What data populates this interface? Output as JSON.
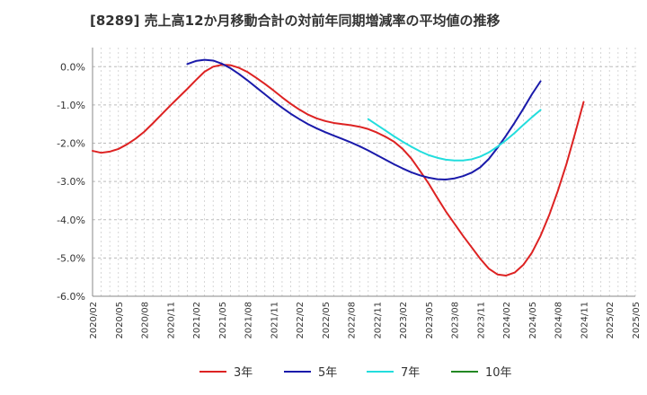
{
  "chart_data": {
    "type": "line",
    "title": "[8289]  売上高12か月移動合計の対前年同期増減率の平均値の推移",
    "xlabel": "",
    "ylabel": "",
    "ylim": [
      -6.0,
      0.5
    ],
    "yticks": [
      "0.0%",
      "-1.0%",
      "-2.0%",
      "-3.0%",
      "-4.0%",
      "-5.0%",
      "-6.0%"
    ],
    "ytick_values": [
      0,
      -1,
      -2,
      -3,
      -4,
      -5,
      -6
    ],
    "xticks": [
      "2020/02",
      "2020/05",
      "2020/08",
      "2020/11",
      "2021/02",
      "2021/05",
      "2021/08",
      "2021/11",
      "2022/02",
      "2022/05",
      "2022/08",
      "2022/11",
      "2023/02",
      "2023/05",
      "2023/08",
      "2023/11",
      "2024/02",
      "2024/05",
      "2024/08",
      "2024/11",
      "2025/02",
      "2025/05"
    ],
    "x_start": "2020/02",
    "x_end": "2025/05",
    "grid": true,
    "legend_position": "bottom",
    "series": [
      {
        "name": "3年",
        "color": "#dd2222",
        "points": [
          [
            "2020/02",
            -2.2
          ],
          [
            "2020/03",
            -2.25
          ],
          [
            "2020/04",
            -2.22
          ],
          [
            "2020/05",
            -2.15
          ],
          [
            "2020/06",
            -2.03
          ],
          [
            "2020/07",
            -1.88
          ],
          [
            "2020/08",
            -1.7
          ],
          [
            "2020/09",
            -1.48
          ],
          [
            "2020/10",
            -1.25
          ],
          [
            "2020/11",
            -1.02
          ],
          [
            "2020/12",
            -0.8
          ],
          [
            "2021/01",
            -0.58
          ],
          [
            "2021/02",
            -0.35
          ],
          [
            "2021/03",
            -0.13
          ],
          [
            "2021/04",
            0.0
          ],
          [
            "2021/05",
            0.05
          ],
          [
            "2021/06",
            0.04
          ],
          [
            "2021/07",
            -0.03
          ],
          [
            "2021/08",
            -0.14
          ],
          [
            "2021/09",
            -0.29
          ],
          [
            "2021/10",
            -0.45
          ],
          [
            "2021/11",
            -0.62
          ],
          [
            "2021/12",
            -0.8
          ],
          [
            "2022/01",
            -0.97
          ],
          [
            "2022/02",
            -1.12
          ],
          [
            "2022/03",
            -1.25
          ],
          [
            "2022/04",
            -1.35
          ],
          [
            "2022/05",
            -1.42
          ],
          [
            "2022/06",
            -1.47
          ],
          [
            "2022/07",
            -1.5
          ],
          [
            "2022/08",
            -1.53
          ],
          [
            "2022/09",
            -1.57
          ],
          [
            "2022/10",
            -1.63
          ],
          [
            "2022/11",
            -1.72
          ],
          [
            "2022/12",
            -1.83
          ],
          [
            "2023/01",
            -1.96
          ],
          [
            "2023/02",
            -2.15
          ],
          [
            "2023/03",
            -2.4
          ],
          [
            "2023/04",
            -2.72
          ],
          [
            "2023/05",
            -3.05
          ],
          [
            "2023/06",
            -3.42
          ],
          [
            "2023/07",
            -3.78
          ],
          [
            "2023/08",
            -4.1
          ],
          [
            "2023/09",
            -4.42
          ],
          [
            "2023/10",
            -4.72
          ],
          [
            "2023/11",
            -5.02
          ],
          [
            "2023/12",
            -5.28
          ],
          [
            "2024/01",
            -5.43
          ],
          [
            "2024/02",
            -5.46
          ],
          [
            "2024/03",
            -5.38
          ],
          [
            "2024/04",
            -5.18
          ],
          [
            "2024/05",
            -4.86
          ],
          [
            "2024/06",
            -4.42
          ],
          [
            "2024/07",
            -3.88
          ],
          [
            "2024/08",
            -3.25
          ],
          [
            "2024/09",
            -2.55
          ],
          [
            "2024/10",
            -1.75
          ],
          [
            "2024/11",
            -0.92
          ]
        ]
      },
      {
        "name": "5年",
        "color": "#1a1aaa",
        "points": [
          [
            "2021/01",
            0.07
          ],
          [
            "2021/02",
            0.15
          ],
          [
            "2021/03",
            0.18
          ],
          [
            "2021/04",
            0.16
          ],
          [
            "2021/05",
            0.08
          ],
          [
            "2021/06",
            -0.04
          ],
          [
            "2021/07",
            -0.19
          ],
          [
            "2021/08",
            -0.36
          ],
          [
            "2021/09",
            -0.54
          ],
          [
            "2021/10",
            -0.72
          ],
          [
            "2021/11",
            -0.9
          ],
          [
            "2021/12",
            -1.07
          ],
          [
            "2022/01",
            -1.23
          ],
          [
            "2022/02",
            -1.37
          ],
          [
            "2022/03",
            -1.5
          ],
          [
            "2022/04",
            -1.61
          ],
          [
            "2022/05",
            -1.71
          ],
          [
            "2022/06",
            -1.8
          ],
          [
            "2022/07",
            -1.89
          ],
          [
            "2022/08",
            -1.98
          ],
          [
            "2022/09",
            -2.08
          ],
          [
            "2022/10",
            -2.19
          ],
          [
            "2022/11",
            -2.31
          ],
          [
            "2022/12",
            -2.43
          ],
          [
            "2023/01",
            -2.55
          ],
          [
            "2023/02",
            -2.66
          ],
          [
            "2023/03",
            -2.76
          ],
          [
            "2023/04",
            -2.84
          ],
          [
            "2023/05",
            -2.9
          ],
          [
            "2023/06",
            -2.94
          ],
          [
            "2023/07",
            -2.95
          ],
          [
            "2023/08",
            -2.92
          ],
          [
            "2023/09",
            -2.86
          ],
          [
            "2023/10",
            -2.77
          ],
          [
            "2023/11",
            -2.63
          ],
          [
            "2023/12",
            -2.41
          ],
          [
            "2024/01",
            -2.12
          ],
          [
            "2024/02",
            -1.8
          ],
          [
            "2024/03",
            -1.46
          ],
          [
            "2024/04",
            -1.1
          ],
          [
            "2024/05",
            -0.72
          ],
          [
            "2024/06",
            -0.38
          ]
        ]
      },
      {
        "name": "7年",
        "color": "#22dddd",
        "points": [
          [
            "2022/10",
            -1.37
          ],
          [
            "2022/11",
            -1.52
          ],
          [
            "2022/12",
            -1.67
          ],
          [
            "2023/01",
            -1.82
          ],
          [
            "2023/02",
            -1.96
          ],
          [
            "2023/03",
            -2.09
          ],
          [
            "2023/04",
            -2.21
          ],
          [
            "2023/05",
            -2.31
          ],
          [
            "2023/06",
            -2.38
          ],
          [
            "2023/07",
            -2.43
          ],
          [
            "2023/08",
            -2.45
          ],
          [
            "2023/09",
            -2.45
          ],
          [
            "2023/10",
            -2.42
          ],
          [
            "2023/11",
            -2.35
          ],
          [
            "2023/12",
            -2.24
          ],
          [
            "2024/01",
            -2.09
          ],
          [
            "2024/02",
            -1.92
          ],
          [
            "2024/03",
            -1.73
          ],
          [
            "2024/04",
            -1.52
          ],
          [
            "2024/05",
            -1.32
          ],
          [
            "2024/06",
            -1.13
          ]
        ]
      },
      {
        "name": "10年",
        "color": "#228822",
        "points": []
      }
    ]
  }
}
